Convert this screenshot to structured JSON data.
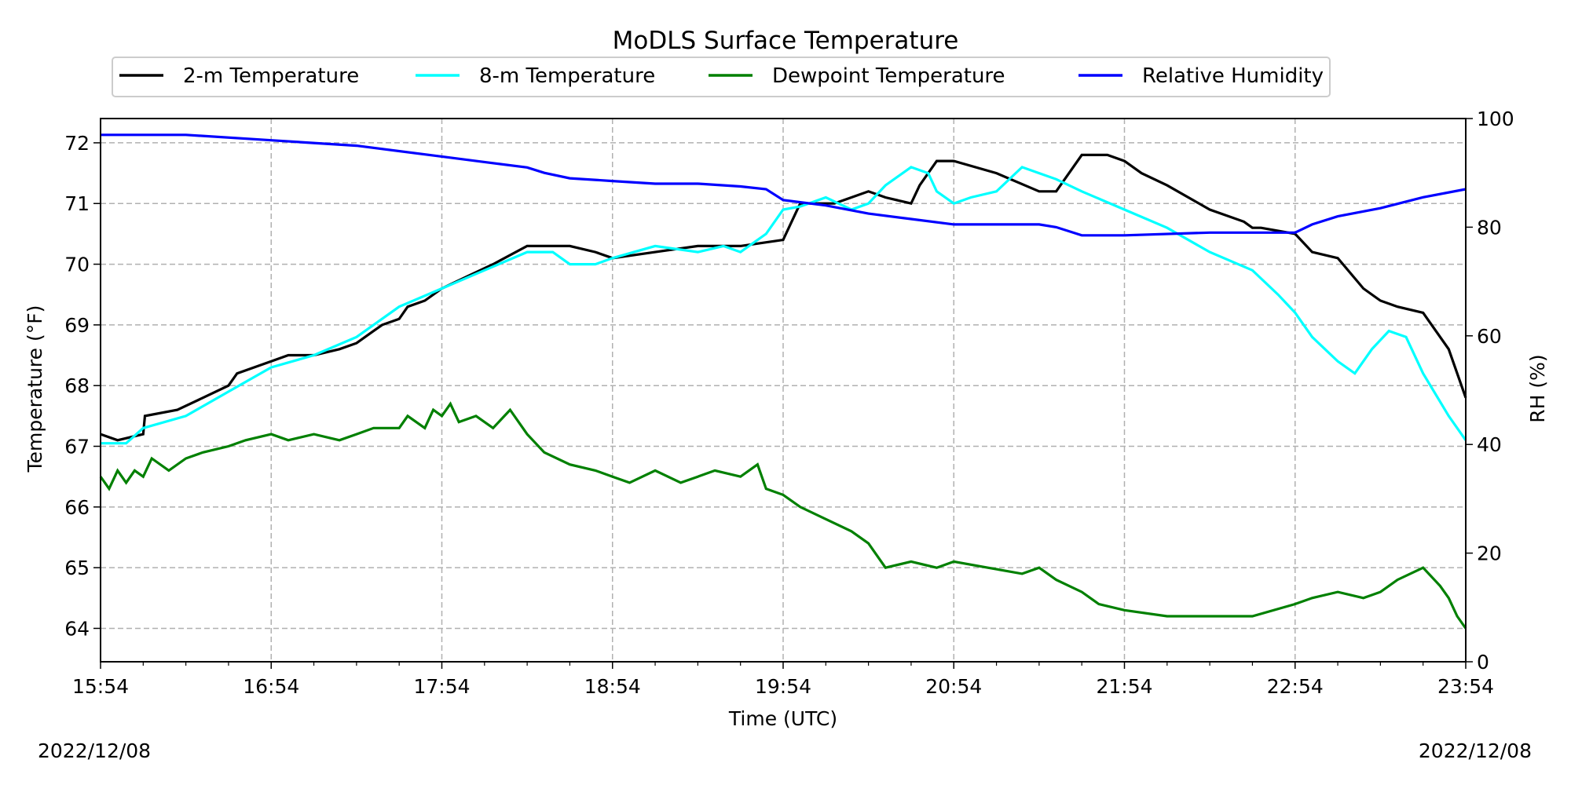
{
  "chart_data": {
    "type": "line",
    "title": "MoDLS Surface Temperature",
    "xlabel": "Time (UTC)",
    "ylabel": "Temperature (°F)",
    "y2label": "RH (%)",
    "x_ticks": [
      "15:54",
      "16:54",
      "17:54",
      "18:54",
      "19:54",
      "20:54",
      "21:54",
      "22:54",
      "23:54"
    ],
    "x_range_hours": [
      0,
      8
    ],
    "ylim": [
      63.45,
      72.4
    ],
    "y_ticks": [
      64,
      65,
      66,
      67,
      68,
      69,
      70,
      71,
      72
    ],
    "y2lim": [
      0,
      100
    ],
    "y2_ticks": [
      0,
      20,
      40,
      60,
      80,
      100
    ],
    "grid": true,
    "legend_position": "top",
    "series": [
      {
        "name": "2-m Temperature",
        "color": "#000000",
        "axis": "left",
        "x": [
          0,
          0.1,
          0.25,
          0.26,
          0.45,
          0.6,
          0.75,
          0.8,
          0.9,
          1.0,
          1.1,
          1.25,
          1.4,
          1.5,
          1.6,
          1.65,
          1.75,
          1.8,
          1.9,
          2.0,
          2.15,
          2.3,
          2.5,
          2.6,
          2.75,
          2.9,
          3.0,
          3.25,
          3.5,
          3.75,
          4.0,
          4.1,
          4.3,
          4.4,
          4.5,
          4.6,
          4.75,
          4.8,
          4.9,
          5.0,
          5.25,
          5.5,
          5.6,
          5.75,
          5.9,
          6.0,
          6.1,
          6.25,
          6.5,
          6.7,
          6.75,
          6.8,
          7.0,
          7.1,
          7.25,
          7.4,
          7.5,
          7.6,
          7.75,
          7.9,
          8.0
        ],
        "y": [
          67.2,
          67.1,
          67.2,
          67.5,
          67.6,
          67.8,
          68.0,
          68.2,
          68.3,
          68.4,
          68.5,
          68.5,
          68.6,
          68.7,
          68.9,
          69.0,
          69.1,
          69.3,
          69.4,
          69.6,
          69.8,
          70.0,
          70.3,
          70.3,
          70.3,
          70.2,
          70.1,
          70.2,
          70.3,
          70.3,
          70.4,
          71.0,
          71.0,
          71.1,
          71.2,
          71.1,
          71.0,
          71.3,
          71.7,
          71.7,
          71.5,
          71.2,
          71.2,
          71.8,
          71.8,
          71.7,
          71.5,
          71.3,
          70.9,
          70.7,
          70.6,
          70.6,
          70.5,
          70.2,
          70.1,
          69.6,
          69.4,
          69.3,
          69.2,
          68.6,
          67.8
        ]
      },
      {
        "name": "8-m Temperature",
        "color": "#00ffff",
        "axis": "left",
        "x": [
          0,
          0.15,
          0.25,
          0.5,
          0.75,
          1.0,
          1.25,
          1.5,
          1.75,
          2.0,
          2.25,
          2.5,
          2.65,
          2.75,
          2.9,
          3.0,
          3.25,
          3.5,
          3.65,
          3.75,
          3.9,
          4.0,
          4.1,
          4.25,
          4.4,
          4.5,
          4.6,
          4.75,
          4.85,
          4.9,
          5.0,
          5.1,
          5.25,
          5.4,
          5.5,
          5.6,
          5.75,
          6.0,
          6.25,
          6.5,
          6.75,
          6.9,
          7.0,
          7.1,
          7.25,
          7.35,
          7.45,
          7.55,
          7.65,
          7.75,
          7.9,
          8.0
        ],
        "y": [
          67.05,
          67.05,
          67.3,
          67.5,
          67.9,
          68.3,
          68.5,
          68.8,
          69.3,
          69.6,
          69.9,
          70.2,
          70.2,
          70.0,
          70.0,
          70.1,
          70.3,
          70.2,
          70.3,
          70.2,
          70.5,
          70.9,
          70.95,
          71.1,
          70.9,
          71.0,
          71.3,
          71.6,
          71.5,
          71.2,
          71.0,
          71.1,
          71.2,
          71.6,
          71.5,
          71.4,
          71.2,
          70.9,
          70.6,
          70.2,
          69.9,
          69.5,
          69.2,
          68.8,
          68.4,
          68.2,
          68.6,
          68.9,
          68.8,
          68.2,
          67.5,
          67.1
        ]
      },
      {
        "name": "Dewpoint Temperature",
        "color": "#008000",
        "axis": "left",
        "x": [
          0,
          0.05,
          0.1,
          0.15,
          0.2,
          0.25,
          0.3,
          0.4,
          0.5,
          0.6,
          0.75,
          0.85,
          1.0,
          1.1,
          1.25,
          1.4,
          1.5,
          1.6,
          1.75,
          1.8,
          1.9,
          1.95,
          2.0,
          2.05,
          2.1,
          2.2,
          2.3,
          2.4,
          2.5,
          2.6,
          2.75,
          2.9,
          3.0,
          3.1,
          3.25,
          3.4,
          3.5,
          3.6,
          3.75,
          3.85,
          3.9,
          4.0,
          4.1,
          4.25,
          4.4,
          4.5,
          4.6,
          4.75,
          4.9,
          5.0,
          5.2,
          5.4,
          5.5,
          5.6,
          5.75,
          5.85,
          6.0,
          6.25,
          6.5,
          6.75,
          7.0,
          7.1,
          7.25,
          7.4,
          7.5,
          7.6,
          7.75,
          7.85,
          7.9,
          7.95,
          8.0
        ],
        "y": [
          66.5,
          66.3,
          66.6,
          66.4,
          66.6,
          66.5,
          66.8,
          66.6,
          66.8,
          66.9,
          67.0,
          67.1,
          67.2,
          67.1,
          67.2,
          67.1,
          67.2,
          67.3,
          67.3,
          67.5,
          67.3,
          67.6,
          67.5,
          67.7,
          67.4,
          67.5,
          67.3,
          67.6,
          67.2,
          66.9,
          66.7,
          66.6,
          66.5,
          66.4,
          66.6,
          66.4,
          66.5,
          66.6,
          66.5,
          66.7,
          66.3,
          66.2,
          66.0,
          65.8,
          65.6,
          65.4,
          65.0,
          65.1,
          65.0,
          65.1,
          65.0,
          64.9,
          65.0,
          64.8,
          64.6,
          64.4,
          64.3,
          64.2,
          64.2,
          64.2,
          64.4,
          64.5,
          64.6,
          64.5,
          64.6,
          64.8,
          65.0,
          64.7,
          64.5,
          64.2,
          64.0
        ]
      },
      {
        "name": "Relative Humidity",
        "color": "#0000ff",
        "axis": "right",
        "x": [
          0,
          0.5,
          1.0,
          1.5,
          2.0,
          2.25,
          2.5,
          2.6,
          2.75,
          3.0,
          3.25,
          3.5,
          3.75,
          3.9,
          4.0,
          4.25,
          4.5,
          4.75,
          5.0,
          5.5,
          5.6,
          5.75,
          6.0,
          6.5,
          7.0,
          7.1,
          7.25,
          7.5,
          7.75,
          8.0
        ],
        "y": [
          97,
          97,
          96,
          95,
          93,
          92,
          91,
          90,
          89,
          88.5,
          88,
          88,
          87.5,
          87,
          85,
          84,
          82.5,
          81.5,
          80.5,
          80.5,
          80,
          78.5,
          78.5,
          79,
          79,
          80.5,
          82,
          83.5,
          85.5,
          87
        ]
      }
    ],
    "dates": [
      "2022/12/08",
      "2022/12/08"
    ]
  }
}
